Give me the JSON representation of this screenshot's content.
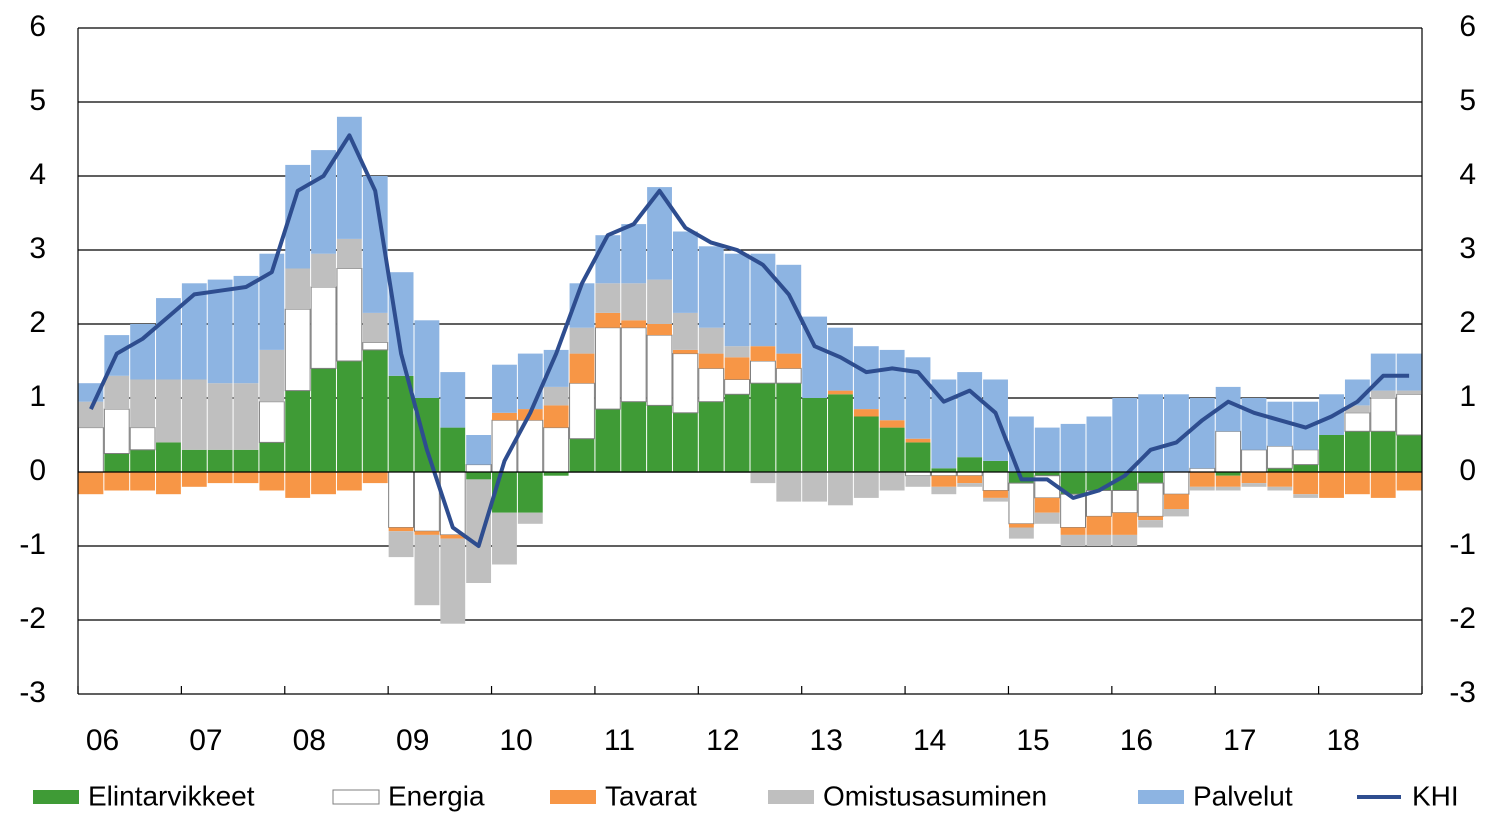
{
  "chart_data": {
    "type": "stacked_bar_line",
    "categories": [
      "06",
      null,
      null,
      null,
      "07",
      null,
      null,
      null,
      "08",
      null,
      null,
      null,
      "09",
      null,
      null,
      null,
      "10",
      null,
      null,
      null,
      "11",
      null,
      null,
      null,
      "12",
      null,
      null,
      null,
      "13",
      null,
      null,
      null,
      "14",
      null,
      null,
      null,
      "15",
      null,
      null,
      null,
      "16",
      null,
      null,
      null,
      "17",
      null,
      null,
      null,
      "18",
      null,
      null,
      null
    ],
    "ylim": [
      -3,
      6
    ],
    "yticks": [
      -3,
      -2,
      -1,
      0,
      1,
      2,
      3,
      4,
      5,
      6
    ],
    "grid": true,
    "series": [
      {
        "name": "Elintarvikkeet",
        "color": "#3f9b36",
        "kind": "bar",
        "values": [
          0,
          0.25,
          0.3,
          0.4,
          0.3,
          0.3,
          0.3,
          0.4,
          1.1,
          1.4,
          1.5,
          1.65,
          1.3,
          1.0,
          0.6,
          -0.1,
          -0.55,
          -0.55,
          -0.05,
          0.45,
          0.85,
          0.95,
          0.9,
          0.8,
          0.95,
          1.05,
          1.2,
          1.2,
          1.0,
          1.05,
          0.75,
          0.6,
          0.4,
          0.05,
          0.2,
          0.15,
          -0.15,
          -0.05,
          -0.3,
          -0.25,
          -0.25,
          -0.15,
          0,
          0,
          -0.05,
          0,
          0.05,
          0.1,
          0.5,
          0.55,
          0.55,
          0.5
        ]
      },
      {
        "name": "Energia",
        "color": "#ffffff",
        "kind": "bar",
        "values": [
          0.6,
          0.6,
          0.3,
          0,
          0,
          0,
          0,
          0.55,
          1.1,
          1.1,
          1.25,
          0.1,
          -0.75,
          -0.8,
          -0.85,
          0.1,
          0.7,
          0.7,
          0.6,
          0.75,
          1.1,
          1.0,
          0.95,
          0.8,
          0.45,
          0.2,
          0.3,
          0.2,
          0,
          0,
          0,
          0,
          -0.05,
          -0.05,
          -0.05,
          -0.25,
          -0.55,
          -0.3,
          -0.45,
          -0.35,
          -0.3,
          -0.45,
          -0.3,
          0.05,
          0.55,
          0.3,
          0.3,
          0.2,
          0,
          0.25,
          0.45,
          0.55
        ]
      },
      {
        "name": "Tavarat",
        "color": "#f79646",
        "kind": "bar",
        "values": [
          -0.3,
          -0.25,
          -0.25,
          -0.3,
          -0.2,
          -0.15,
          -0.15,
          -0.25,
          -0.35,
          -0.3,
          -0.25,
          -0.15,
          -0.05,
          -0.05,
          -0.05,
          0,
          0.1,
          0.15,
          0.3,
          0.4,
          0.2,
          0.1,
          0.15,
          0.05,
          0.2,
          0.3,
          0.2,
          0.2,
          0,
          0.05,
          0.1,
          0.1,
          0.05,
          -0.15,
          -0.1,
          -0.1,
          -0.05,
          -0.2,
          -0.1,
          -0.25,
          -0.3,
          -0.05,
          -0.2,
          -0.2,
          -0.15,
          -0.15,
          -0.2,
          -0.3,
          -0.35,
          -0.3,
          -0.35,
          -0.25
        ]
      },
      {
        "name": "Omistusasuminen",
        "color": "#bfbfbf",
        "kind": "bar",
        "values": [
          0.35,
          0.45,
          0.65,
          0.85,
          0.95,
          0.9,
          0.9,
          0.7,
          0.55,
          0.45,
          0.4,
          0.4,
          -0.35,
          -0.95,
          -1.15,
          -1.4,
          -0.7,
          -0.15,
          0.25,
          0.35,
          0.4,
          0.5,
          0.6,
          0.5,
          0.35,
          0.15,
          -0.15,
          -0.4,
          -0.4,
          -0.45,
          -0.35,
          -0.25,
          -0.15,
          -0.1,
          -0.05,
          -0.05,
          -0.15,
          -0.15,
          -0.15,
          -0.15,
          -0.15,
          -0.1,
          -0.1,
          -0.05,
          -0.05,
          -0.05,
          -0.05,
          -0.05,
          0,
          0.1,
          0.1,
          0.05
        ]
      },
      {
        "name": "Palvelut",
        "color": "#8db4e2",
        "kind": "bar",
        "values": [
          0.25,
          0.55,
          0.75,
          1.1,
          1.3,
          1.4,
          1.45,
          1.3,
          1.4,
          1.4,
          1.65,
          1.85,
          1.4,
          1.05,
          0.75,
          0.4,
          0.65,
          0.75,
          0.5,
          0.6,
          0.65,
          0.8,
          1.25,
          1.1,
          1.1,
          1.25,
          1.25,
          1.2,
          1.1,
          0.85,
          0.85,
          0.95,
          1.1,
          1.2,
          1.15,
          1.1,
          0.75,
          0.6,
          0.65,
          0.75,
          1.0,
          1.05,
          1.05,
          0.95,
          0.6,
          0.7,
          0.6,
          0.65,
          0.55,
          0.35,
          0.5,
          0.5
        ]
      },
      {
        "name": "KHI",
        "color": "#2e4d8f",
        "kind": "line",
        "values": [
          0.85,
          1.6,
          1.8,
          2.1,
          2.4,
          2.45,
          2.5,
          2.7,
          3.8,
          4.0,
          4.55,
          3.8,
          1.6,
          0.3,
          -0.75,
          -1.0,
          0.15,
          0.8,
          1.6,
          2.55,
          3.2,
          3.35,
          3.8,
          3.3,
          3.1,
          3.0,
          2.8,
          2.4,
          1.7,
          1.55,
          1.35,
          1.4,
          1.35,
          0.95,
          1.1,
          0.8,
          -0.1,
          -0.1,
          -0.35,
          -0.25,
          -0.05,
          0.3,
          0.4,
          0.7,
          0.95,
          0.8,
          0.7,
          0.6,
          0.75,
          0.95,
          1.3,
          1.3
        ]
      }
    ]
  }
}
